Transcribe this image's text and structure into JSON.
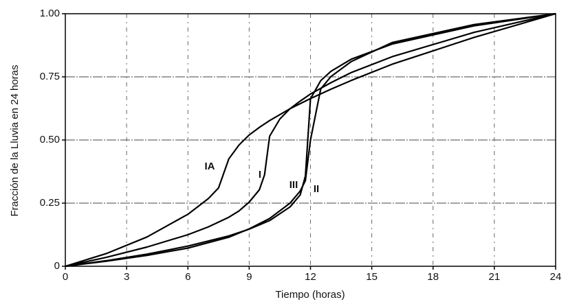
{
  "chart_data": {
    "type": "line",
    "xlabel": "Tiempo (horas)",
    "ylabel": "Fracción de la Lluvia en 24 horas",
    "xlim": [
      0,
      24
    ],
    "ylim": [
      0,
      1
    ],
    "xticks": [
      0,
      3,
      6,
      9,
      12,
      15,
      18,
      21,
      24
    ],
    "yticks": [
      0,
      0.25,
      {
        "value": 0.5,
        "label": "0.50"
      },
      0.75,
      {
        "value": 1,
        "label": "1.00"
      }
    ],
    "grid": true,
    "series": [
      {
        "name": "IA",
        "color": "#000000",
        "x": [
          0,
          2,
          4,
          6,
          7,
          7.5,
          8,
          8.5,
          9,
          9.5,
          10,
          11,
          12,
          13,
          14,
          16,
          20,
          24
        ],
        "values": [
          0,
          0.05,
          0.116,
          0.206,
          0.268,
          0.31,
          0.425,
          0.48,
          0.52,
          0.55,
          0.577,
          0.624,
          0.664,
          0.701,
          0.736,
          0.8,
          0.906,
          1
        ]
      },
      {
        "name": "I",
        "color": "#000000",
        "x": [
          0,
          2,
          4,
          6,
          7,
          8,
          8.5,
          9,
          9.5,
          9.75,
          10,
          10.5,
          11,
          11.5,
          12,
          13,
          14,
          16,
          20,
          24
        ],
        "values": [
          0,
          0.035,
          0.076,
          0.125,
          0.156,
          0.194,
          0.219,
          0.254,
          0.303,
          0.362,
          0.515,
          0.583,
          0.624,
          0.654,
          0.682,
          0.727,
          0.767,
          0.83,
          0.926,
          1
        ]
      },
      {
        "name": "III",
        "color": "#000000",
        "x": [
          0,
          2,
          4,
          6,
          8,
          9,
          10,
          11,
          11.5,
          11.75,
          12,
          12.5,
          13,
          14,
          16,
          20,
          24
        ],
        "values": [
          0,
          0.02,
          0.043,
          0.072,
          0.115,
          0.148,
          0.189,
          0.25,
          0.298,
          0.339,
          0.5,
          0.702,
          0.751,
          0.811,
          0.886,
          0.957,
          1
        ]
      },
      {
        "name": "II",
        "color": "#000000",
        "x": [
          0,
          2,
          4,
          6,
          8,
          9,
          10,
          11,
          11.5,
          11.75,
          12,
          12.5,
          13,
          14,
          16,
          20,
          24
        ],
        "values": [
          0,
          0.022,
          0.048,
          0.08,
          0.12,
          0.147,
          0.181,
          0.235,
          0.283,
          0.357,
          0.663,
          0.735,
          0.772,
          0.82,
          0.88,
          0.952,
          1
        ]
      }
    ]
  }
}
